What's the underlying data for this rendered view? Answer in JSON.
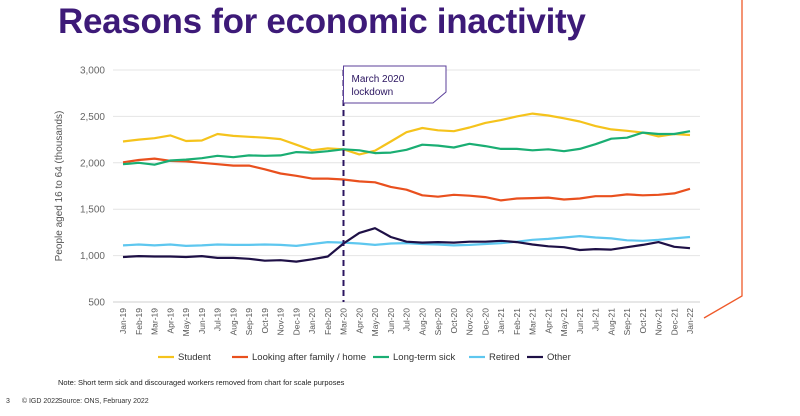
{
  "page": {
    "title": "Reasons for economic inactivity",
    "note": "Note: Short term sick and discouraged workers removed from chart for scale purposes",
    "footer": {
      "page_number": "3",
      "copyright": "© IGD 2022",
      "source": "Source: ONS, February 2022"
    },
    "accent_color": "#ef5a2a",
    "title_color": "#3d1a78"
  },
  "chart_data": {
    "type": "line",
    "title": "",
    "xlabel": "",
    "ylabel": "People aged 16 to 64 (thousands)",
    "ylim": [
      500,
      3000
    ],
    "yticks": [
      "3,000",
      "2,500",
      "2,000",
      "1,500",
      "1,000",
      "500"
    ],
    "ytick_values": [
      3000,
      2500,
      2000,
      1500,
      1000,
      500
    ],
    "grid": true,
    "legend_position": "bottom",
    "x": [
      "Jan-19",
      "Feb-19",
      "Mar-19",
      "Apr-19",
      "May-19",
      "Jun-19",
      "Jul-19",
      "Aug-19",
      "Sep-19",
      "Oct-19",
      "Nov-19",
      "Dec-19",
      "Jan-20",
      "Feb-20",
      "Mar-20",
      "Apr-20",
      "May-20",
      "Jun-20",
      "Jul-20",
      "Aug-20",
      "Sep-20",
      "Oct-20",
      "Nov-20",
      "Dec-20",
      "Jan-21",
      "Feb-21",
      "Mar-21",
      "Apr-21",
      "May-21",
      "Jun-21",
      "Jul-21",
      "Aug-21",
      "Sep-21",
      "Oct-21",
      "Nov-21",
      "Dec-21",
      "Jan-22"
    ],
    "annotation": {
      "lines": [
        "March 2020",
        "lockdown"
      ],
      "at": "Mar-20"
    },
    "series": [
      {
        "name": "Student",
        "color": "#f5c31c",
        "values": [
          2230,
          2250,
          2265,
          2295,
          2235,
          2240,
          2310,
          2290,
          2280,
          2270,
          2255,
          2195,
          2135,
          2155,
          2145,
          2090,
          2130,
          2230,
          2330,
          2375,
          2350,
          2340,
          2380,
          2430,
          2460,
          2500,
          2530,
          2510,
          2480,
          2445,
          2395,
          2360,
          2345,
          2325,
          2285,
          2310,
          2300
        ]
      },
      {
        "name": "Looking after family / home",
        "color": "#e9501e",
        "values": [
          2005,
          2030,
          2045,
          2020,
          2015,
          2000,
          1985,
          1970,
          1970,
          1930,
          1885,
          1860,
          1830,
          1830,
          1820,
          1800,
          1790,
          1740,
          1710,
          1650,
          1635,
          1655,
          1645,
          1630,
          1595,
          1615,
          1620,
          1625,
          1605,
          1615,
          1640,
          1640,
          1660,
          1650,
          1655,
          1670,
          1720
        ]
      },
      {
        "name": "Long-term sick",
        "color": "#1aae73",
        "values": [
          1985,
          2000,
          1980,
          2025,
          2035,
          2050,
          2075,
          2060,
          2080,
          2075,
          2080,
          2115,
          2110,
          2125,
          2145,
          2135,
          2105,
          2110,
          2140,
          2195,
          2185,
          2165,
          2205,
          2180,
          2150,
          2150,
          2135,
          2145,
          2125,
          2150,
          2200,
          2260,
          2270,
          2325,
          2310,
          2310,
          2340
        ]
      },
      {
        "name": "Retired",
        "color": "#5ec7ef",
        "values": [
          1110,
          1120,
          1110,
          1120,
          1105,
          1110,
          1120,
          1115,
          1115,
          1120,
          1115,
          1105,
          1125,
          1145,
          1140,
          1130,
          1115,
          1130,
          1135,
          1125,
          1120,
          1110,
          1115,
          1125,
          1135,
          1150,
          1170,
          1180,
          1195,
          1210,
          1195,
          1185,
          1165,
          1160,
          1170,
          1185,
          1200
        ]
      },
      {
        "name": "Other",
        "color": "#1e1046",
        "values": [
          985,
          995,
          990,
          990,
          985,
          995,
          975,
          975,
          965,
          945,
          950,
          935,
          960,
          990,
          1130,
          1245,
          1295,
          1200,
          1150,
          1140,
          1145,
          1140,
          1150,
          1150,
          1160,
          1145,
          1120,
          1100,
          1090,
          1060,
          1070,
          1065,
          1090,
          1115,
          1145,
          1095,
          1080
        ]
      }
    ]
  }
}
